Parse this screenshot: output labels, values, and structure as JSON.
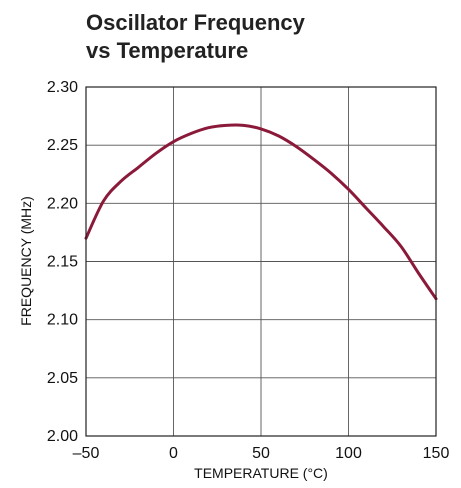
{
  "chart_data": {
    "type": "line",
    "title": [
      "Oscillator Frequency",
      "vs Temperature"
    ],
    "xlabel": "TEMPERATURE (°C)",
    "ylabel": "FREQUENCY (MHz)",
    "xlim": [
      -50,
      150
    ],
    "ylim": [
      2.0,
      2.3
    ],
    "xticks": [
      -50,
      0,
      50,
      100,
      150
    ],
    "xtick_labels": [
      "–50",
      "0",
      "50",
      "100",
      "150"
    ],
    "yticks": [
      2.0,
      2.05,
      2.1,
      2.15,
      2.2,
      2.25,
      2.3
    ],
    "ytick_labels": [
      "2.00",
      "2.05",
      "2.10",
      "2.15",
      "2.20",
      "2.25",
      "2.30"
    ],
    "grid": true,
    "series": [
      {
        "color": "#8B1A3A",
        "x": [
          -50,
          -40,
          -30,
          -20,
          -10,
          0,
          10,
          20,
          30,
          40,
          50,
          60,
          70,
          80,
          90,
          100,
          110,
          120,
          130,
          140,
          150
        ],
        "y": [
          2.17,
          2.202,
          2.219,
          2.231,
          2.243,
          2.253,
          2.26,
          2.265,
          2.267,
          2.267,
          2.264,
          2.258,
          2.249,
          2.238,
          2.226,
          2.212,
          2.196,
          2.18,
          2.163,
          2.14,
          2.118
        ]
      }
    ]
  }
}
